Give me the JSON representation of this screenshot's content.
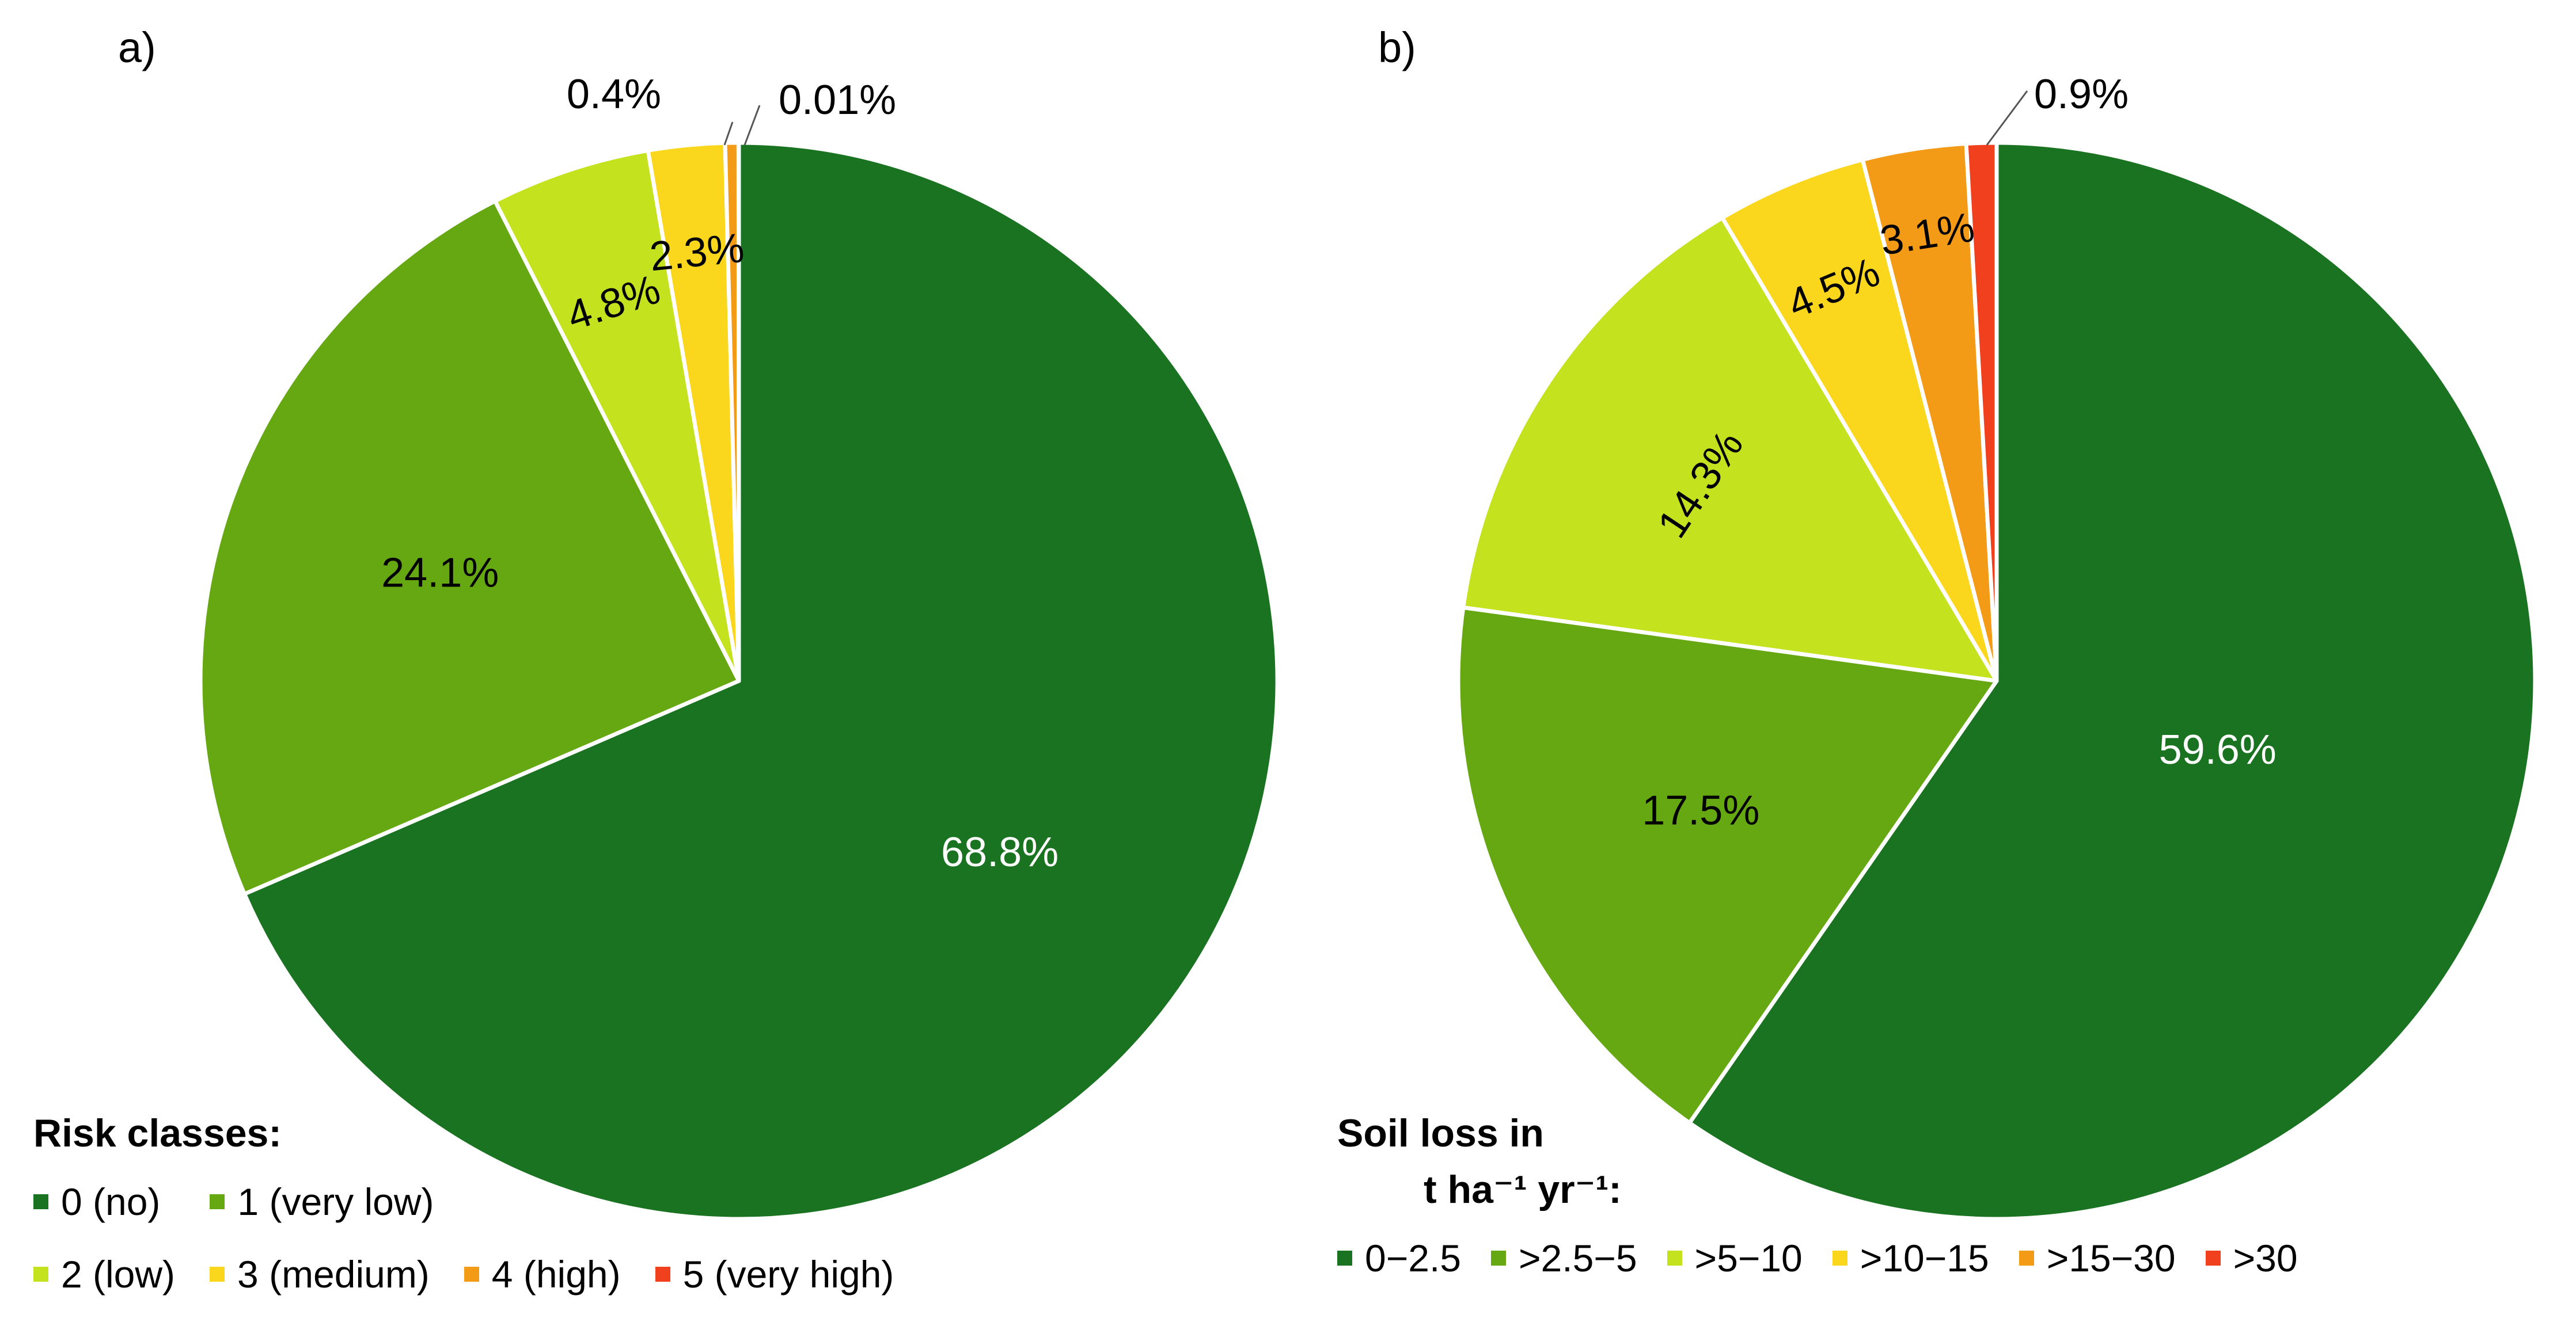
{
  "chart_data": [
    {
      "type": "pie",
      "panel_label": "a)",
      "legend_title": "Risk classes:",
      "legend_unit": "",
      "slices": [
        {
          "label": "0 (no)",
          "value": 68.8,
          "display": "68.8%",
          "color": "#1a7320"
        },
        {
          "label": "1 (very low)",
          "value": 24.1,
          "display": "24.1%",
          "color": "#66a812"
        },
        {
          "label": "2 (low)",
          "value": 4.8,
          "display": "4.8%",
          "color": "#c4e21e"
        },
        {
          "label": "3 (medium)",
          "value": 2.3,
          "display": "2.3%",
          "color": "#fad61c"
        },
        {
          "label": "4 (high)",
          "value": 0.4,
          "display": "0.4%",
          "color": "#f39a17"
        },
        {
          "label": "5 (very high)",
          "value": 0.01,
          "display": "0.01%",
          "color": "#f0401e"
        }
      ]
    },
    {
      "type": "pie",
      "panel_label": "b)",
      "legend_title": "Soil loss in",
      "legend_unit": "t ha⁻¹ yr⁻¹:",
      "slices": [
        {
          "label": "0−2.5",
          "value": 59.6,
          "display": "59.6%",
          "color": "#1a7320"
        },
        {
          "label": ">2.5−5",
          "value": 17.5,
          "display": "17.5%",
          "color": "#66a812"
        },
        {
          "label": ">5−10",
          "value": 14.3,
          "display": "14.3%",
          "color": "#c4e21e"
        },
        {
          "label": ">10−15",
          "value": 4.5,
          "display": "4.5%",
          "color": "#fad61c"
        },
        {
          "label": ">15−30",
          "value": 3.1,
          "display": "3.1%",
          "color": "#f39a17"
        },
        {
          "label": ">30",
          "value": 0.9,
          "display": "0.9%",
          "color": "#f0401e"
        }
      ]
    }
  ]
}
